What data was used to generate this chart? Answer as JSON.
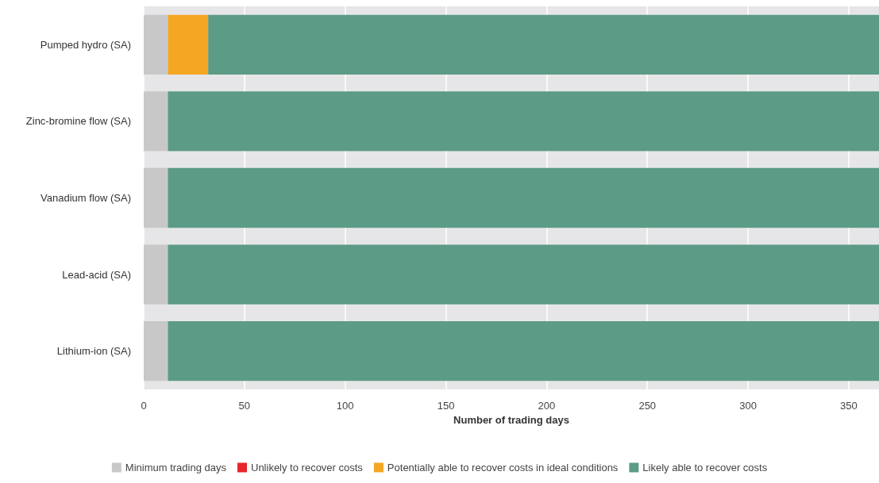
{
  "chart_data": {
    "type": "bar",
    "orientation": "horizontal",
    "stacked": true,
    "xlabel": "Number of trading days",
    "categories": [
      "Pumped hydro (SA)",
      "Zinc-bromine flow (SA)",
      "Vanadium flow (SA)",
      "Lead-acid (SA)",
      "Lithium-ion (SA)"
    ],
    "series": [
      {
        "name": "Minimum trading days",
        "color": "#c8c8c8",
        "values": [
          12,
          12,
          12,
          12,
          12
        ]
      },
      {
        "name": "Unlikely to recover costs",
        "color": "#e8252a",
        "values": [
          0,
          0,
          0,
          0,
          0
        ]
      },
      {
        "name": "Potentially able to recover costs in ideal conditions",
        "color": "#f5a623",
        "values": [
          20,
          0,
          0,
          0,
          0
        ]
      },
      {
        "name": "Likely able to recover costs",
        "color": "#5c9b86",
        "values": [
          333,
          353,
          353,
          353,
          353
        ]
      }
    ],
    "xlim": [
      0,
      365
    ],
    "xticks": [
      0,
      50,
      100,
      150,
      200,
      250,
      300,
      350
    ],
    "grid": "x",
    "legend": "bottom"
  }
}
